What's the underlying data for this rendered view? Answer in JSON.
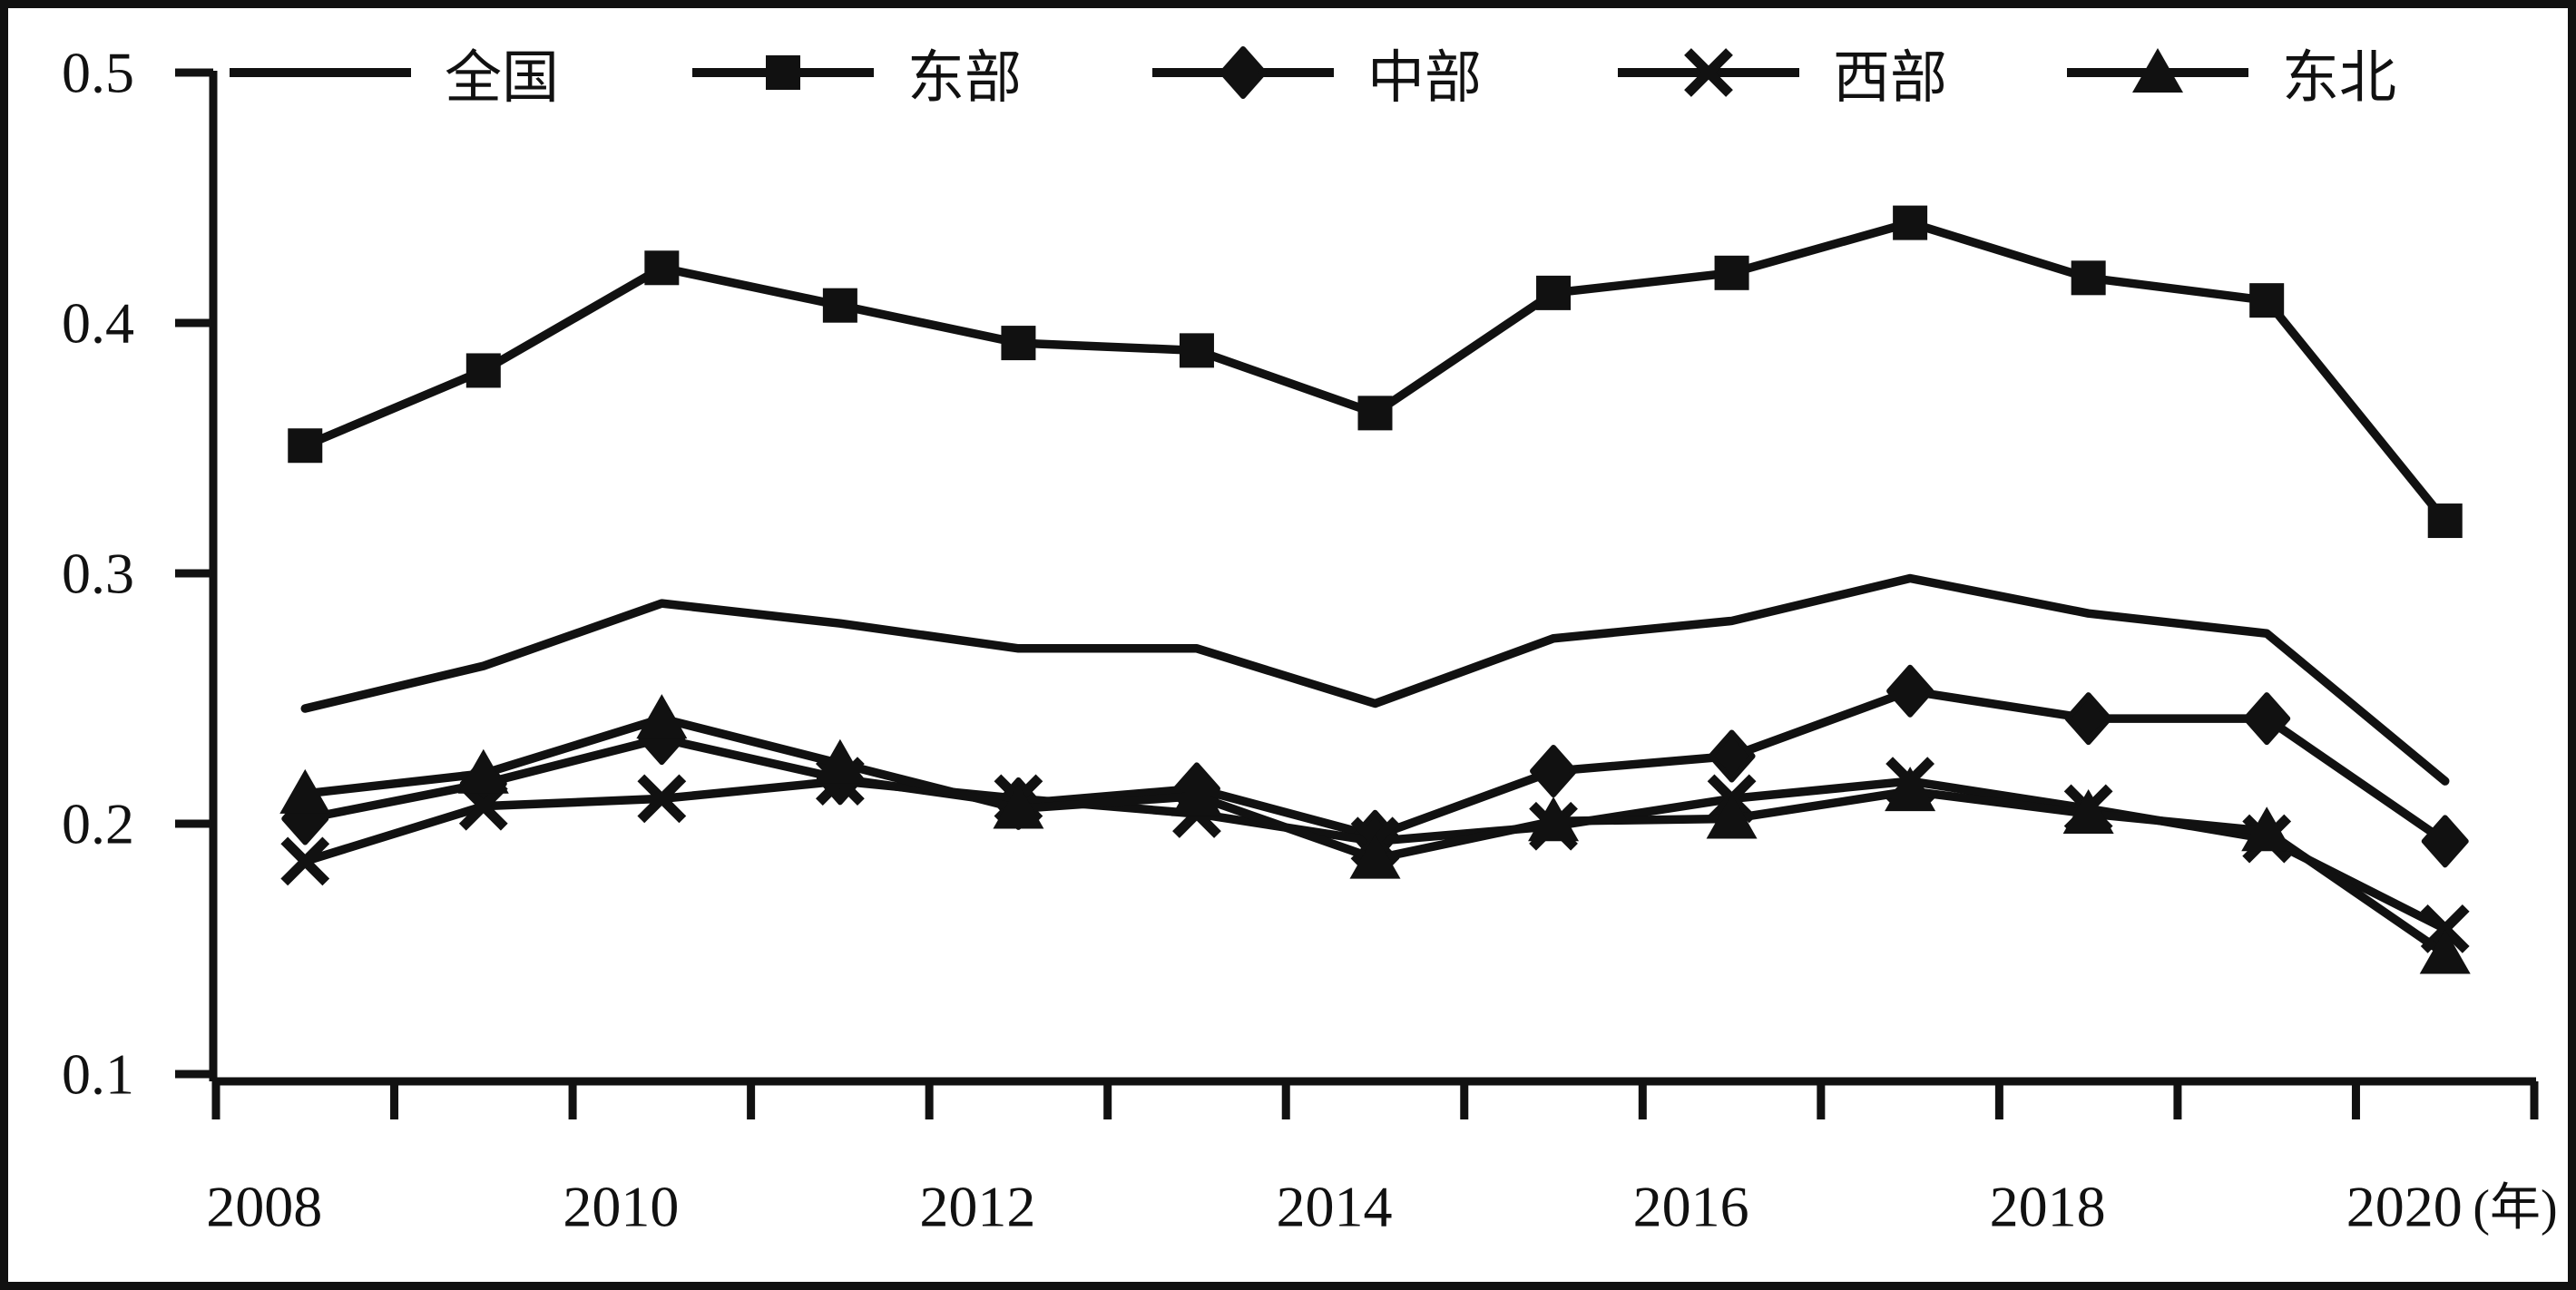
{
  "chart_data": {
    "type": "line",
    "title": "",
    "xlabel": "",
    "ylabel": "",
    "x_unit": "(年)",
    "x": [
      2008,
      2009,
      2010,
      2011,
      2012,
      2013,
      2014,
      2015,
      2016,
      2017,
      2018,
      2019,
      2020
    ],
    "x_tick_labels": [
      "2008",
      "2010",
      "2012",
      "2014",
      "2016",
      "2018",
      "2020"
    ],
    "y_ticks": [
      "0.5",
      "0.4",
      "0.3",
      "0.2",
      "0.1"
    ],
    "ylim": [
      0.1,
      0.5
    ],
    "grid": false,
    "legend_position": "top",
    "line_color": "#111111",
    "background_color": "#ffffff",
    "series": [
      {
        "name": "全国",
        "marker": "none",
        "values": [
          0.246,
          0.263,
          0.288,
          0.28,
          0.27,
          0.27,
          0.248,
          0.274,
          0.281,
          0.298,
          0.284,
          0.276,
          0.217
        ]
      },
      {
        "name": "东部",
        "marker": "square",
        "values": [
          0.351,
          0.381,
          0.422,
          0.407,
          0.392,
          0.389,
          0.364,
          0.412,
          0.42,
          0.44,
          0.418,
          0.409,
          0.321
        ]
      },
      {
        "name": "中部",
        "marker": "diamond",
        "values": [
          0.202,
          0.216,
          0.234,
          0.218,
          0.208,
          0.214,
          0.195,
          0.221,
          0.227,
          0.253,
          0.242,
          0.242,
          0.193
        ]
      },
      {
        "name": "西部",
        "marker": "x",
        "values": [
          0.185,
          0.207,
          0.21,
          0.217,
          0.21,
          0.204,
          0.193,
          0.199,
          0.21,
          0.217,
          0.206,
          0.194,
          0.158
        ]
      },
      {
        "name": "东北",
        "marker": "triangle",
        "values": [
          0.212,
          0.22,
          0.242,
          0.224,
          0.206,
          0.211,
          0.186,
          0.201,
          0.202,
          0.213,
          0.204,
          0.197,
          0.148
        ]
      }
    ]
  }
}
